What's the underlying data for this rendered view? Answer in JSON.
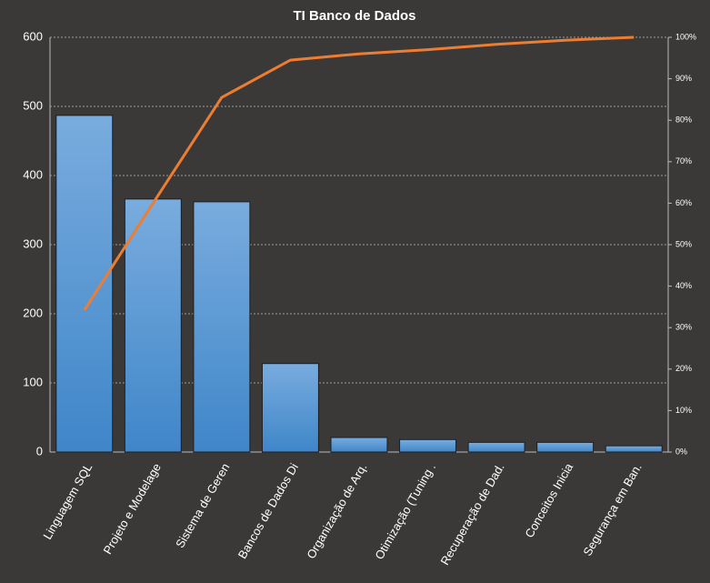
{
  "chart_data": {
    "type": "pareto",
    "title": "TI Banco de Dados",
    "categories": [
      "Linguagem SQL",
      "Projeto e Modelage",
      "Sistema de Geren",
      "Bancos de Dados Di",
      "Organização de Arq.",
      "Otimização (Tuning .",
      "Recuperação de Dad.",
      "Conceitos Inicia",
      "Segurança em Ban."
    ],
    "series": [
      {
        "color": "#5b9bd5",
        "values": [
          487,
          366,
          362,
          128,
          21,
          18,
          14,
          14,
          9
        ]
      },
      {
        "color": "#ed7d31",
        "axis": "y2",
        "values": [
          34.2,
          60,
          85.5,
          94.5,
          96,
          97,
          98.3,
          99.3,
          100
        ]
      }
    ],
    "ylim": [
      0,
      600
    ],
    "yticks": [
      0,
      100,
      200,
      300,
      400,
      500,
      600
    ],
    "y2lim": [
      0,
      100
    ],
    "y2ticks": [
      {
        "value": 0,
        "label": "0%"
      },
      {
        "value": 10,
        "label": "10%"
      },
      {
        "value": 20,
        "label": "20%"
      },
      {
        "value": 30,
        "label": "30%"
      },
      {
        "value": 40,
        "label": "40%"
      },
      {
        "value": 50,
        "label": "50%"
      },
      {
        "value": 60,
        "label": "60%"
      },
      {
        "value": 70,
        "label": "70%"
      },
      {
        "value": 80,
        "label": "80%"
      },
      {
        "value": 90,
        "label": "90%"
      },
      {
        "value": 100,
        "label": "100%"
      }
    ],
    "grid": true
  }
}
